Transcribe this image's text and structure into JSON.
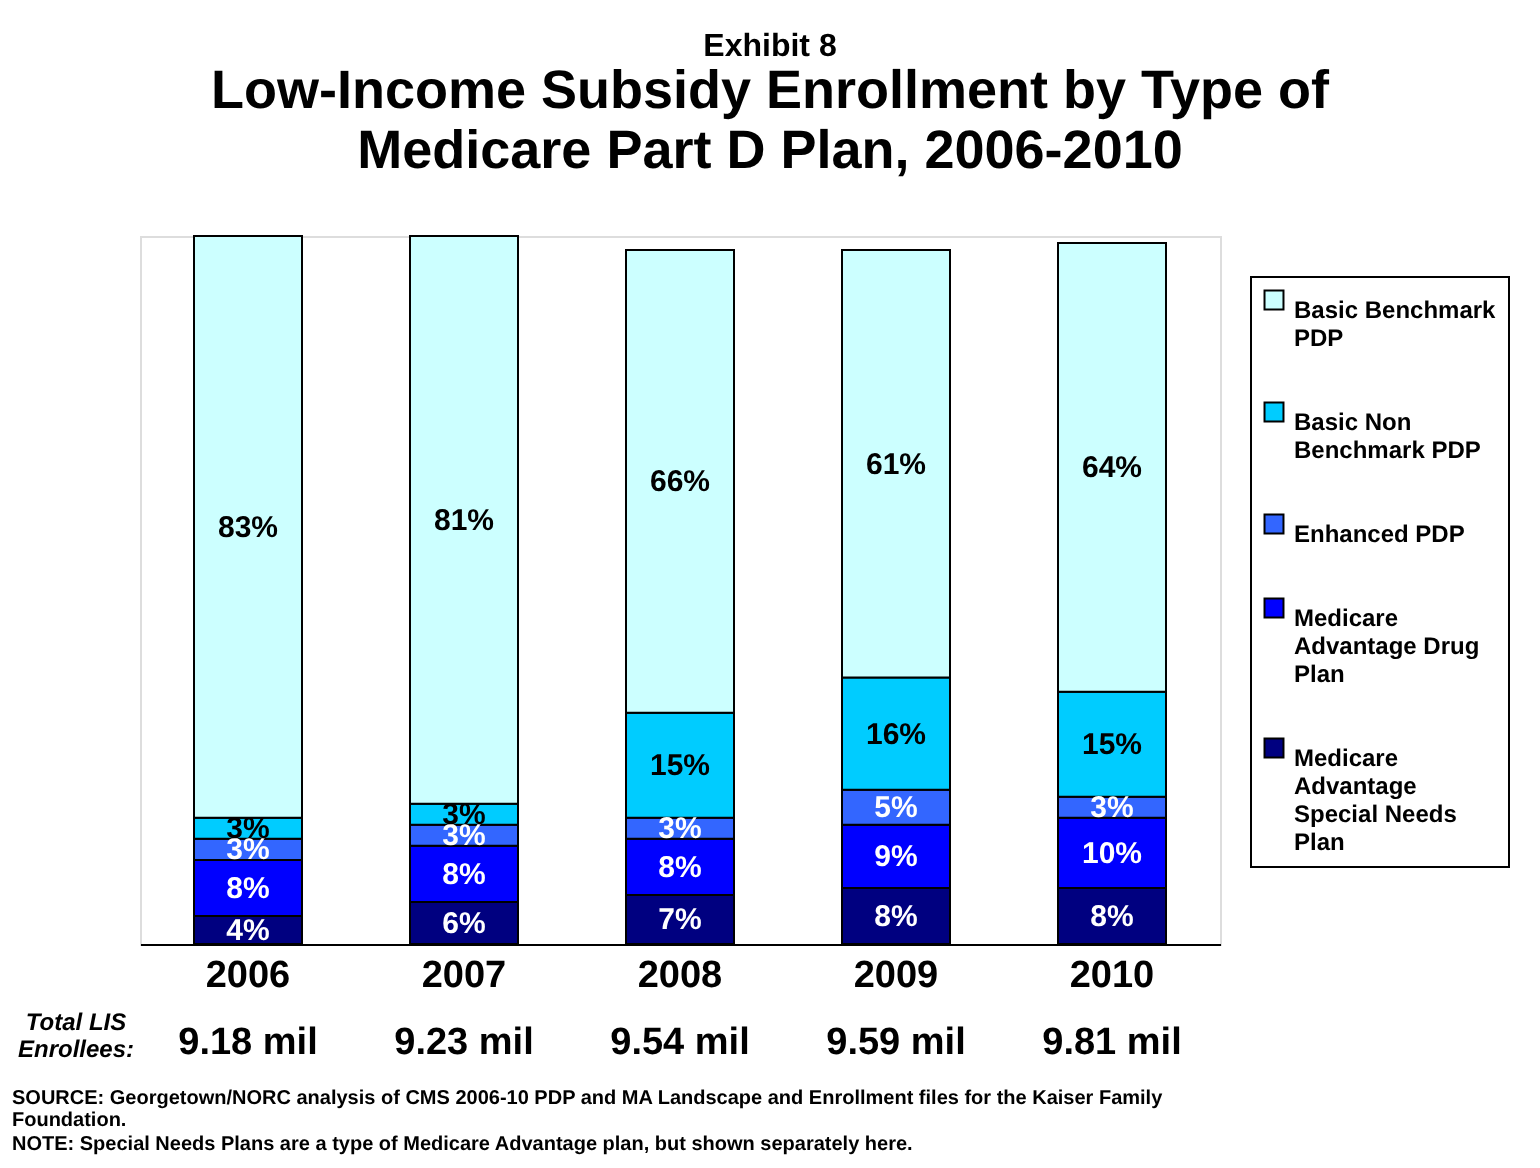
{
  "chart_data": {
    "type": "bar",
    "title": "Exhibit 8",
    "subtitle": "Low-Income Subsidy Enrollment by Type of Medicare Part D Plan, 2006-2010",
    "categories": [
      "2006",
      "2007",
      "2008",
      "2009",
      "2010"
    ],
    "stacked": true,
    "legend": "right",
    "grid": false,
    "tick_labels": "x",
    "series": [
      {
        "name": "Medicare Advantage Special Needs Plan",
        "color": "#000080",
        "values": [
          4,
          6,
          7,
          8,
          8
        ],
        "value_labels": [
          "4%",
          "6%",
          "7%",
          "8%",
          "8%"
        ]
      },
      {
        "name": "Medicare Advantage Drug Plan",
        "color": "#0000ff",
        "values": [
          8,
          8,
          8,
          9,
          10
        ],
        "value_labels": [
          "8%",
          "8%",
          "8%",
          "9%",
          "10%"
        ]
      },
      {
        "name": "Enhanced PDP",
        "color": "#3366ff",
        "values": [
          3,
          3,
          3,
          5,
          3
        ],
        "value_labels": [
          "3%",
          "3%",
          "3%",
          "5%",
          "3%"
        ]
      },
      {
        "name": "Basic Non Benchmark PDP",
        "color": "#00ccff",
        "values": [
          3,
          3,
          15,
          16,
          15
        ],
        "value_labels": [
          "3%",
          "3%",
          "15%",
          "16%",
          "15%"
        ]
      },
      {
        "name": "Basic Benchmark PDP",
        "color": "#ccffff",
        "values": [
          83,
          81,
          66,
          61,
          64
        ],
        "value_labels": [
          "83%",
          "81%",
          "66%",
          "61%",
          "64%"
        ]
      }
    ],
    "annotations": [
      "9.18 mil",
      "9.23 mil",
      "9.54 mil",
      "9.59 mil",
      "9.81 mil",
      "Total LIS Enrollees:",
      "SOURCE: Georgetown/NORC analysis of CMS 2006-10 PDP and MA Landscape and Enrollment files for the Kaiser Family Foundation.",
      "NOTE: Special Needs Plans are a type of Medicare Advantage plan, but shown separately here."
    ]
  }
}
